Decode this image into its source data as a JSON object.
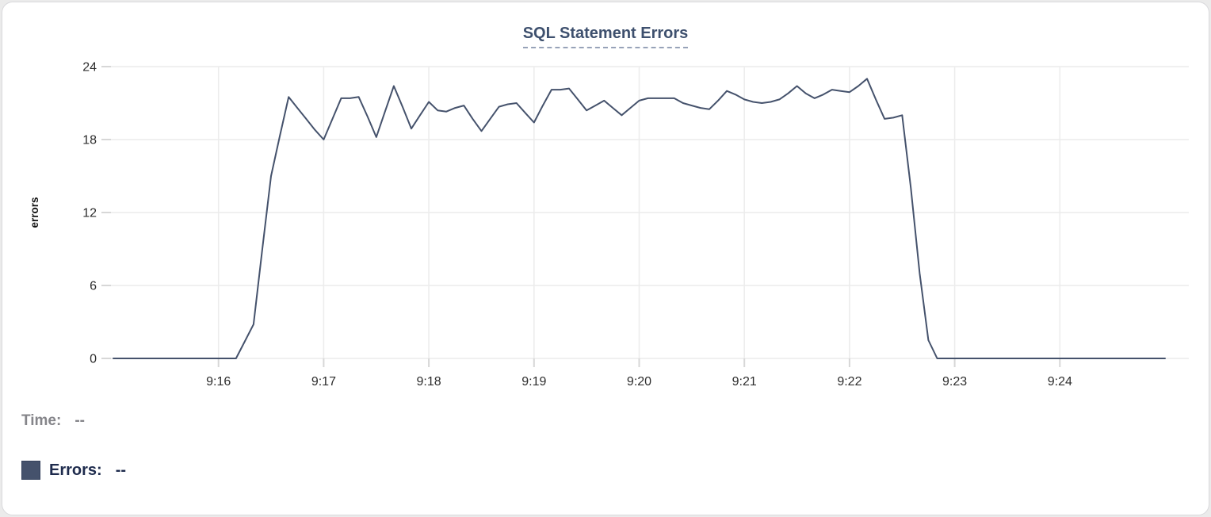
{
  "colors": {
    "series": "#45526c",
    "title": "#3e506e",
    "grid": "#ececec",
    "tick": "#d7d7d7"
  },
  "tooltip_readout": {
    "time_label": "Time:",
    "time_value": "--",
    "errors_label": "Errors:",
    "errors_value": "--"
  },
  "chart_data": {
    "type": "line",
    "title": "SQL Statement Errors",
    "xlabel": "",
    "ylabel": "errors",
    "ylim": [
      0,
      24
    ],
    "yticks": [
      0,
      6,
      12,
      18,
      24
    ],
    "xticks": [
      "9:16",
      "9:17",
      "9:18",
      "9:19",
      "9:20",
      "9:21",
      "9:22",
      "9:23",
      "9:24"
    ],
    "x_range": [
      "9:15:00",
      "9:25:00"
    ],
    "interval_seconds": 5,
    "grid": true,
    "legend_position": "bottom-left",
    "series": [
      {
        "name": "Errors",
        "points": [
          [
            "9:15:00",
            0
          ],
          [
            "9:15:05",
            0
          ],
          [
            "9:15:10",
            0
          ],
          [
            "9:15:15",
            0
          ],
          [
            "9:15:20",
            0
          ],
          [
            "9:15:25",
            0
          ],
          [
            "9:15:30",
            0
          ],
          [
            "9:15:35",
            0
          ],
          [
            "9:15:40",
            0
          ],
          [
            "9:15:45",
            0
          ],
          [
            "9:15:50",
            0
          ],
          [
            "9:15:55",
            0
          ],
          [
            "9:16:00",
            0
          ],
          [
            "9:16:05",
            0
          ],
          [
            "9:16:10",
            0
          ],
          [
            "9:16:15",
            1.4
          ],
          [
            "9:16:20",
            2.8
          ],
          [
            "9:16:25",
            9
          ],
          [
            "9:16:30",
            15
          ],
          [
            "9:16:35",
            18.3
          ],
          [
            "9:16:40",
            21.5
          ],
          [
            "9:16:45",
            20.6
          ],
          [
            "9:16:50",
            19.7
          ],
          [
            "9:16:55",
            18.8
          ],
          [
            "9:17:00",
            18
          ],
          [
            "9:17:05",
            19.7
          ],
          [
            "9:17:10",
            21.4
          ],
          [
            "9:17:15",
            21.4
          ],
          [
            "9:17:20",
            21.5
          ],
          [
            "9:17:25",
            19.9
          ],
          [
            "9:17:30",
            18.2
          ],
          [
            "9:17:35",
            20.3
          ],
          [
            "9:17:40",
            22.4
          ],
          [
            "9:17:45",
            20.7
          ],
          [
            "9:17:50",
            18.9
          ],
          [
            "9:17:55",
            20
          ],
          [
            "9:18:00",
            21.1
          ],
          [
            "9:18:05",
            20.4
          ],
          [
            "9:18:10",
            20.3
          ],
          [
            "9:18:15",
            20.6
          ],
          [
            "9:18:20",
            20.8
          ],
          [
            "9:18:25",
            19.7
          ],
          [
            "9:18:30",
            18.7
          ],
          [
            "9:18:35",
            19.7
          ],
          [
            "9:18:40",
            20.7
          ],
          [
            "9:18:45",
            20.9
          ],
          [
            "9:18:50",
            21
          ],
          [
            "9:18:55",
            20.2
          ],
          [
            "9:19:00",
            19.4
          ],
          [
            "9:19:05",
            20.8
          ],
          [
            "9:19:10",
            22.1
          ],
          [
            "9:19:15",
            22.1
          ],
          [
            "9:19:20",
            22.2
          ],
          [
            "9:19:25",
            21.3
          ],
          [
            "9:19:30",
            20.4
          ],
          [
            "9:19:35",
            20.8
          ],
          [
            "9:19:40",
            21.2
          ],
          [
            "9:19:45",
            20.6
          ],
          [
            "9:19:50",
            20
          ],
          [
            "9:19:55",
            20.6
          ],
          [
            "9:20:00",
            21.2
          ],
          [
            "9:20:05",
            21.4
          ],
          [
            "9:20:10",
            21.4
          ],
          [
            "9:20:15",
            21.4
          ],
          [
            "9:20:20",
            21.4
          ],
          [
            "9:20:25",
            21
          ],
          [
            "9:20:30",
            20.8
          ],
          [
            "9:20:35",
            20.6
          ],
          [
            "9:20:40",
            20.5
          ],
          [
            "9:20:45",
            21.2
          ],
          [
            "9:20:50",
            22
          ],
          [
            "9:20:55",
            21.7
          ],
          [
            "9:21:00",
            21.3
          ],
          [
            "9:21:05",
            21.1
          ],
          [
            "9:21:10",
            21
          ],
          [
            "9:21:15",
            21.1
          ],
          [
            "9:21:20",
            21.3
          ],
          [
            "9:21:25",
            21.8
          ],
          [
            "9:21:30",
            22.4
          ],
          [
            "9:21:35",
            21.8
          ],
          [
            "9:21:40",
            21.4
          ],
          [
            "9:21:45",
            21.7
          ],
          [
            "9:21:50",
            22.1
          ],
          [
            "9:21:55",
            22
          ],
          [
            "9:22:00",
            21.9
          ],
          [
            "9:22:05",
            22.4
          ],
          [
            "9:22:10",
            23
          ],
          [
            "9:22:15",
            21.3
          ],
          [
            "9:22:20",
            19.7
          ],
          [
            "9:22:25",
            19.8
          ],
          [
            "9:22:30",
            20
          ],
          [
            "9:22:35",
            14
          ],
          [
            "9:22:40",
            7
          ],
          [
            "9:22:45",
            1.5
          ],
          [
            "9:22:50",
            0
          ],
          [
            "9:22:55",
            0
          ],
          [
            "9:23:00",
            0
          ],
          [
            "9:23:05",
            0
          ],
          [
            "9:23:10",
            0
          ],
          [
            "9:23:15",
            0
          ],
          [
            "9:23:20",
            0
          ],
          [
            "9:23:25",
            0
          ],
          [
            "9:23:30",
            0
          ],
          [
            "9:23:35",
            0
          ],
          [
            "9:23:40",
            0
          ],
          [
            "9:23:45",
            0
          ],
          [
            "9:23:50",
            0
          ],
          [
            "9:23:55",
            0
          ],
          [
            "9:24:00",
            0
          ],
          [
            "9:24:05",
            0
          ],
          [
            "9:24:10",
            0
          ],
          [
            "9:24:15",
            0
          ],
          [
            "9:24:20",
            0
          ],
          [
            "9:24:25",
            0
          ],
          [
            "9:24:30",
            0
          ],
          [
            "9:24:35",
            0
          ],
          [
            "9:24:40",
            0
          ],
          [
            "9:24:45",
            0
          ],
          [
            "9:24:50",
            0
          ],
          [
            "9:24:55",
            0
          ],
          [
            "9:25:00",
            0
          ]
        ]
      }
    ]
  }
}
